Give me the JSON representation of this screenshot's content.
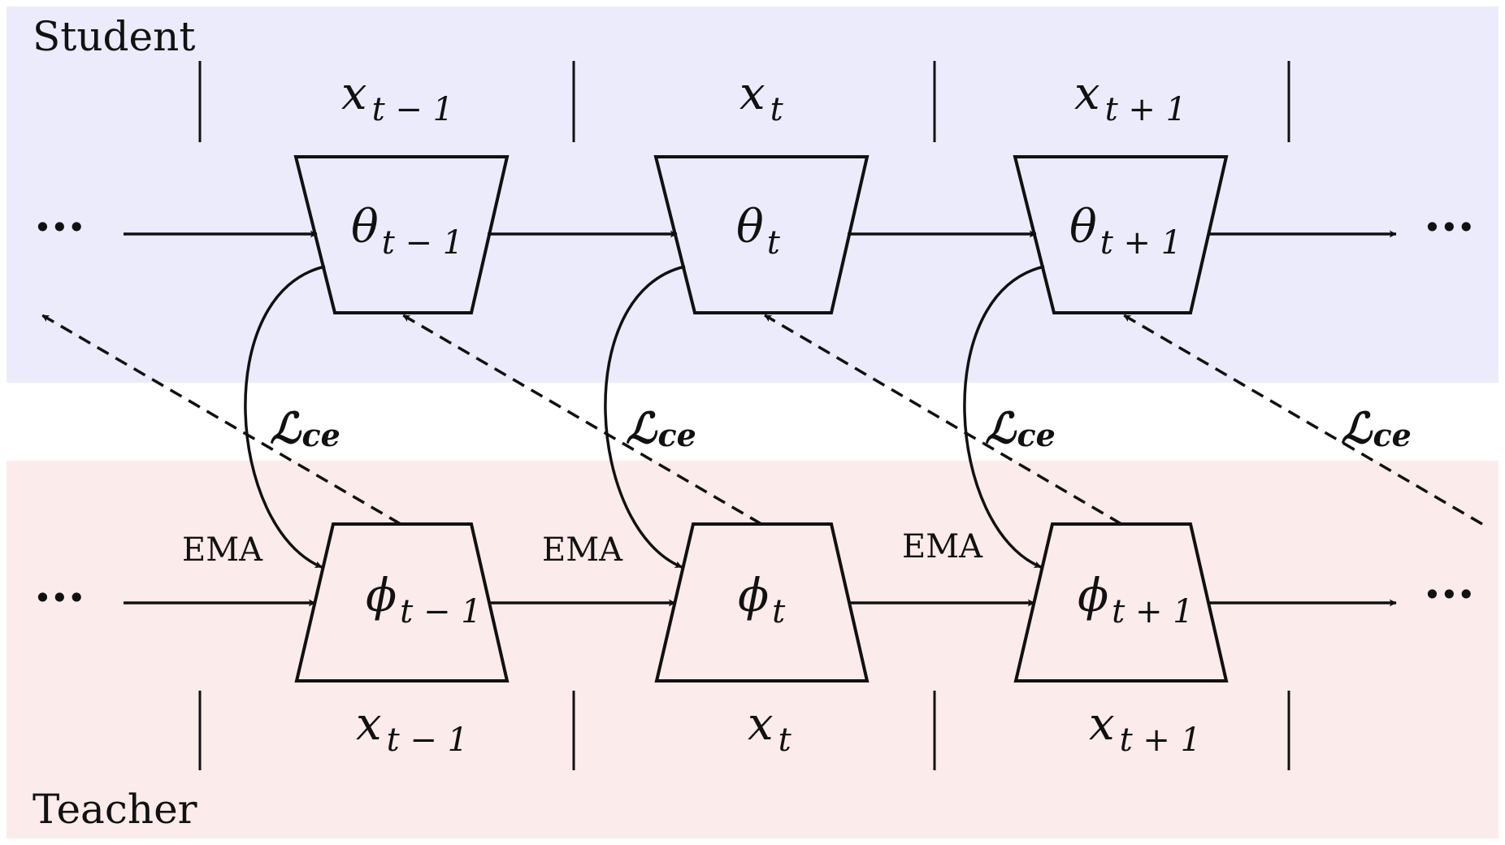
{
  "bands": {
    "student": {
      "label": "Student",
      "color": "#EBEBFB"
    },
    "teacher": {
      "label": "Teacher",
      "color": "#FCEBEB"
    }
  },
  "ellipsis": "···",
  "steps": [
    {
      "input_base": "x",
      "input_sub": "t − 1",
      "student_base": "θ",
      "student_sub": "t − 1",
      "teacher_base": "ϕ",
      "teacher_sub": "t − 1",
      "ema_label": "EMA",
      "loss_base": "ℒ",
      "loss_sub": "ce"
    },
    {
      "input_base": "x",
      "input_sub": "t",
      "student_base": "θ",
      "student_sub": "t",
      "teacher_base": "ϕ",
      "teacher_sub": "t",
      "ema_label": "EMA",
      "loss_base": "ℒ",
      "loss_sub": "ce"
    },
    {
      "input_base": "x",
      "input_sub": "t + 1",
      "student_base": "θ",
      "student_sub": "t + 1",
      "teacher_base": "ϕ",
      "teacher_sub": "t + 1",
      "ema_label": "EMA",
      "loss_base": "ℒ",
      "loss_sub": "ce"
    }
  ],
  "extra_loss": {
    "loss_base": "ℒ",
    "loss_sub": "ce"
  }
}
